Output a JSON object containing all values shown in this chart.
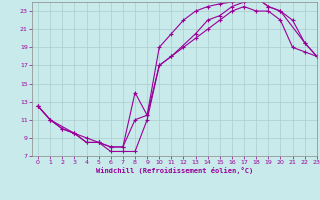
{
  "xlabel": "Windchill (Refroidissement éolien,°C)",
  "bg_color": "#c8eaea",
  "grid_color": "#aacccc",
  "line_color": "#990099",
  "xlim": [
    -0.5,
    23
  ],
  "ylim": [
    7,
    24
  ],
  "xticks": [
    0,
    1,
    2,
    3,
    4,
    5,
    6,
    7,
    8,
    9,
    10,
    11,
    12,
    13,
    14,
    15,
    16,
    17,
    18,
    19,
    20,
    21,
    22,
    23
  ],
  "yticks": [
    7,
    9,
    11,
    13,
    15,
    17,
    19,
    21,
    23
  ],
  "line1_x": [
    0,
    1,
    2,
    3,
    4,
    5,
    6,
    7,
    8,
    9,
    10,
    11,
    12,
    13,
    14,
    15,
    16,
    17,
    18,
    19,
    20,
    21,
    22,
    23
  ],
  "line1_y": [
    12.5,
    11,
    10,
    9.5,
    8.5,
    8.5,
    8,
    8,
    14,
    11.5,
    19,
    20.5,
    22,
    23,
    23.5,
    23.8,
    24,
    24.4,
    24.5,
    23.5,
    23,
    22,
    19.5,
    18
  ],
  "line2_x": [
    0,
    1,
    2,
    3,
    4,
    5,
    6,
    7,
    8,
    9,
    10,
    11,
    12,
    13,
    14,
    15,
    16,
    17,
    18,
    19,
    20,
    21,
    22,
    23
  ],
  "line2_y": [
    12.5,
    11,
    10,
    9.5,
    8.5,
    8.5,
    8,
    8,
    11,
    11.5,
    17,
    18,
    19,
    20,
    21,
    22,
    23,
    23.5,
    23,
    23,
    22,
    19,
    18.5,
    18
  ],
  "line3_x": [
    0,
    1,
    3,
    4,
    5,
    6,
    7,
    8,
    9,
    10,
    11,
    13,
    14,
    15,
    16,
    17,
    18,
    19,
    20,
    22,
    23
  ],
  "line3_y": [
    12.5,
    11,
    9.5,
    9,
    8.5,
    7.5,
    7.5,
    7.5,
    11,
    17,
    18,
    20.5,
    22,
    22.5,
    23.5,
    24,
    24.5,
    23.5,
    23,
    19.5,
    18
  ]
}
